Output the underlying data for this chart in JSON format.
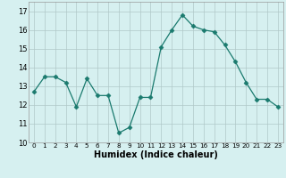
{
  "x": [
    0,
    1,
    2,
    3,
    4,
    5,
    6,
    7,
    8,
    9,
    10,
    11,
    12,
    13,
    14,
    15,
    16,
    17,
    18,
    19,
    20,
    21,
    22,
    23
  ],
  "y": [
    12.7,
    13.5,
    13.5,
    13.2,
    11.9,
    13.4,
    12.5,
    12.5,
    10.5,
    10.8,
    12.4,
    12.4,
    15.1,
    16.0,
    16.8,
    16.2,
    16.0,
    15.9,
    15.2,
    14.3,
    13.2,
    12.3,
    12.3,
    11.9
  ],
  "line_color": "#1a7a6e",
  "marker": "D",
  "marker_size": 2.5,
  "bg_color": "#d6f0f0",
  "grid_color": "#b0c8c8",
  "xlabel": "Humidex (Indice chaleur)",
  "xlim": [
    -0.5,
    23.5
  ],
  "ylim": [
    10,
    17.5
  ],
  "yticks": [
    10,
    11,
    12,
    13,
    14,
    15,
    16,
    17
  ],
  "xticks": [
    0,
    1,
    2,
    3,
    4,
    5,
    6,
    7,
    8,
    9,
    10,
    11,
    12,
    13,
    14,
    15,
    16,
    17,
    18,
    19,
    20,
    21,
    22,
    23
  ]
}
